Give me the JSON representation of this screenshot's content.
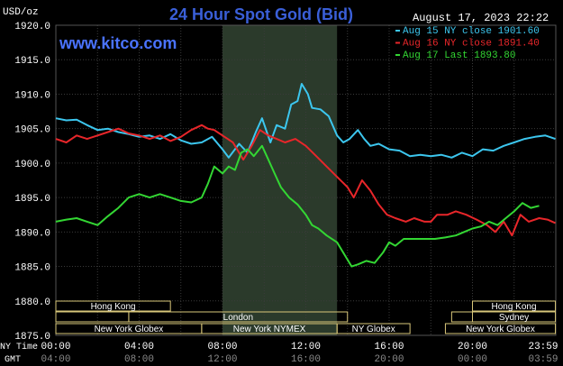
{
  "header": {
    "title": "24 Hour Spot Gold (Bid)",
    "unit": "USD/oz",
    "timestamp": "August 17, 2023 22:22",
    "watermark": "www.kitco.com"
  },
  "colors": {
    "background": "#000000",
    "grid": "#3a3a3a",
    "text": "#ffffff",
    "title": "#3a5fd8",
    "watermark": "#4a73ff",
    "highlight": "#2b3a2b",
    "session_border": "#d9c77a",
    "aug15": "#3cc6ee",
    "aug16": "#e8262a",
    "aug17": "#33d633"
  },
  "sessions": {
    "row1": [
      {
        "label": "Hong Kong",
        "start": 0,
        "end": 5.5
      },
      {
        "label": "Hong Kong",
        "start": 20,
        "end": 23.98
      }
    ],
    "row2": [
      {
        "label": "",
        "start": 0,
        "end": 3.5
      },
      {
        "label": "London",
        "start": 3.5,
        "end": 14
      },
      {
        "label": "",
        "start": 19,
        "end": 20
      },
      {
        "label": "Sydney",
        "start": 20,
        "end": 23.98
      }
    ],
    "row3": [
      {
        "label": "New York Globex",
        "start": 0,
        "end": 7
      },
      {
        "label": "New York NYMEX",
        "start": 7,
        "end": 13.5
      },
      {
        "label": "NY Globex",
        "start": 13.5,
        "end": 17
      }
    ],
    "row3b": [
      {
        "label": "New York Globex",
        "start": 18.7,
        "end": 23.98
      }
    ]
  },
  "time_axis": {
    "ny_label": "NY Time",
    "gmt_label": "GMT",
    "ny_ticks": [
      "00:00",
      "04:00",
      "08:00",
      "12:00",
      "16:00",
      "20:00",
      "23:59"
    ],
    "gmt_ticks": [
      "04:00",
      "08:00",
      "12:00",
      "16:00",
      "20:00",
      "00:00",
      "03:59"
    ],
    "tick_hours": [
      0,
      4,
      8,
      12,
      16,
      20,
      23.98
    ]
  },
  "chart_data": {
    "type": "line",
    "title": "24 Hour Spot Gold (Bid)",
    "ylabel": "USD/oz",
    "xlabel": "NY Time",
    "xlim": [
      0,
      24
    ],
    "ylim": [
      1875,
      1920
    ],
    "y_ticks": [
      "1875.0",
      "1880.0",
      "1885.0",
      "1890.0",
      "1895.0",
      "1900.0",
      "1905.0",
      "1910.0",
      "1915.0",
      "1920.0"
    ],
    "highlight_hours": [
      8,
      13.5
    ],
    "legend_position": "top-right",
    "series": [
      {
        "name": "Aug 15 NY close 1901.60",
        "color_key": "aug15",
        "points": [
          [
            0,
            1906.5
          ],
          [
            0.5,
            1906.2
          ],
          [
            1,
            1906.3
          ],
          [
            1.5,
            1905.5
          ],
          [
            2,
            1904.8
          ],
          [
            2.5,
            1905.0
          ],
          [
            3,
            1904.5
          ],
          [
            3.5,
            1904.2
          ],
          [
            4,
            1903.8
          ],
          [
            4.5,
            1904.0
          ],
          [
            5,
            1903.5
          ],
          [
            5.5,
            1904.2
          ],
          [
            6,
            1903.3
          ],
          [
            6.5,
            1902.8
          ],
          [
            7,
            1903.0
          ],
          [
            7.5,
            1903.8
          ],
          [
            8,
            1902.0
          ],
          [
            8.3,
            1900.8
          ],
          [
            8.8,
            1902.8
          ],
          [
            9.2,
            1901.5
          ],
          [
            9.6,
            1904.5
          ],
          [
            9.9,
            1906.5
          ],
          [
            10.3,
            1903.0
          ],
          [
            10.6,
            1905.5
          ],
          [
            11,
            1905.0
          ],
          [
            11.3,
            1908.5
          ],
          [
            11.6,
            1909.0
          ],
          [
            11.8,
            1911.5
          ],
          [
            12.1,
            1910.0
          ],
          [
            12.3,
            1908.0
          ],
          [
            12.7,
            1907.8
          ],
          [
            13.1,
            1906.8
          ],
          [
            13.5,
            1904.0
          ],
          [
            13.8,
            1903.0
          ],
          [
            14.1,
            1903.5
          ],
          [
            14.5,
            1904.8
          ],
          [
            14.8,
            1903.5
          ],
          [
            15.1,
            1902.5
          ],
          [
            15.5,
            1902.8
          ],
          [
            16,
            1902.0
          ],
          [
            16.5,
            1901.8
          ],
          [
            17,
            1901.0
          ],
          [
            17.5,
            1901.2
          ],
          [
            18,
            1901.0
          ],
          [
            18.5,
            1901.2
          ],
          [
            19,
            1900.8
          ],
          [
            19.5,
            1901.5
          ],
          [
            20,
            1901.0
          ],
          [
            20.5,
            1902.0
          ],
          [
            21,
            1901.8
          ],
          [
            21.5,
            1902.5
          ],
          [
            22,
            1903.0
          ],
          [
            22.5,
            1903.5
          ],
          [
            23,
            1903.8
          ],
          [
            23.5,
            1904.0
          ],
          [
            23.98,
            1903.5
          ]
        ]
      },
      {
        "name": "Aug 16 NY close 1891.40",
        "color_key": "aug16",
        "points": [
          [
            0,
            1903.5
          ],
          [
            0.5,
            1903.0
          ],
          [
            1,
            1904.0
          ],
          [
            1.5,
            1903.5
          ],
          [
            2,
            1904.0
          ],
          [
            2.5,
            1904.5
          ],
          [
            3,
            1905.0
          ],
          [
            3.5,
            1904.3
          ],
          [
            4,
            1904.0
          ],
          [
            4.5,
            1903.5
          ],
          [
            5,
            1904.0
          ],
          [
            5.5,
            1903.2
          ],
          [
            6,
            1903.8
          ],
          [
            6.5,
            1904.8
          ],
          [
            7,
            1905.5
          ],
          [
            7.3,
            1905.0
          ],
          [
            7.6,
            1904.8
          ],
          [
            8,
            1904.0
          ],
          [
            8.5,
            1903.0
          ],
          [
            9,
            1900.5
          ],
          [
            9.4,
            1902.5
          ],
          [
            9.8,
            1904.8
          ],
          [
            10.2,
            1904.0
          ],
          [
            10.6,
            1903.5
          ],
          [
            11,
            1903.0
          ],
          [
            11.5,
            1903.5
          ],
          [
            12,
            1902.5
          ],
          [
            12.5,
            1901.0
          ],
          [
            13,
            1899.5
          ],
          [
            13.5,
            1898.0
          ],
          [
            14,
            1896.5
          ],
          [
            14.3,
            1895.0
          ],
          [
            14.7,
            1897.5
          ],
          [
            15.1,
            1896.0
          ],
          [
            15.5,
            1894.0
          ],
          [
            15.9,
            1892.5
          ],
          [
            16.3,
            1892.0
          ],
          [
            16.8,
            1891.5
          ],
          [
            17.2,
            1892.0
          ],
          [
            17.7,
            1891.5
          ],
          [
            18,
            1891.5
          ],
          [
            18.3,
            1892.5
          ],
          [
            18.8,
            1892.5
          ],
          [
            19.2,
            1893.0
          ],
          [
            19.7,
            1892.5
          ],
          [
            20.2,
            1891.8
          ],
          [
            20.7,
            1891.0
          ],
          [
            21.1,
            1890.0
          ],
          [
            21.5,
            1891.5
          ],
          [
            21.9,
            1889.5
          ],
          [
            22.3,
            1892.5
          ],
          [
            22.7,
            1891.5
          ],
          [
            23.2,
            1892.0
          ],
          [
            23.6,
            1891.8
          ],
          [
            23.98,
            1891.3
          ]
        ]
      },
      {
        "name": "Aug 17 Last 1893.80",
        "color_key": "aug17",
        "points": [
          [
            0,
            1891.5
          ],
          [
            0.5,
            1891.8
          ],
          [
            1,
            1892.0
          ],
          [
            1.5,
            1891.5
          ],
          [
            2,
            1891.0
          ],
          [
            2.5,
            1892.3
          ],
          [
            3,
            1893.5
          ],
          [
            3.5,
            1895.0
          ],
          [
            4,
            1895.5
          ],
          [
            4.5,
            1895.0
          ],
          [
            5,
            1895.5
          ],
          [
            5.5,
            1895.0
          ],
          [
            6,
            1894.5
          ],
          [
            6.5,
            1894.3
          ],
          [
            7,
            1895.0
          ],
          [
            7.3,
            1897.0
          ],
          [
            7.6,
            1899.5
          ],
          [
            8,
            1898.5
          ],
          [
            8.3,
            1899.5
          ],
          [
            8.6,
            1899.0
          ],
          [
            8.9,
            1901.5
          ],
          [
            9.2,
            1902.0
          ],
          [
            9.5,
            1901.0
          ],
          [
            9.9,
            1902.5
          ],
          [
            10.2,
            1900.5
          ],
          [
            10.5,
            1898.5
          ],
          [
            10.8,
            1896.5
          ],
          [
            11.2,
            1895.0
          ],
          [
            11.6,
            1894.0
          ],
          [
            12,
            1892.5
          ],
          [
            12.3,
            1891.0
          ],
          [
            12.6,
            1890.5
          ],
          [
            13,
            1889.5
          ],
          [
            13.5,
            1888.5
          ],
          [
            13.9,
            1886.5
          ],
          [
            14.2,
            1885.0
          ],
          [
            14.5,
            1885.3
          ],
          [
            14.9,
            1885.8
          ],
          [
            15.3,
            1885.5
          ],
          [
            15.7,
            1887.0
          ],
          [
            16,
            1888.5
          ],
          [
            16.3,
            1888.0
          ],
          [
            16.7,
            1889.0
          ],
          [
            17.2,
            1889.0
          ],
          [
            17.7,
            1889.0
          ],
          [
            18.2,
            1889.0
          ],
          [
            18.7,
            1889.2
          ],
          [
            19.2,
            1889.5
          ],
          [
            19.6,
            1890.0
          ],
          [
            20,
            1890.5
          ],
          [
            20.4,
            1890.8
          ],
          [
            20.8,
            1891.5
          ],
          [
            21.2,
            1891.0
          ],
          [
            21.6,
            1892.0
          ],
          [
            22,
            1893.0
          ],
          [
            22.4,
            1894.2
          ],
          [
            22.8,
            1893.5
          ],
          [
            23.2,
            1893.8
          ]
        ]
      }
    ]
  }
}
